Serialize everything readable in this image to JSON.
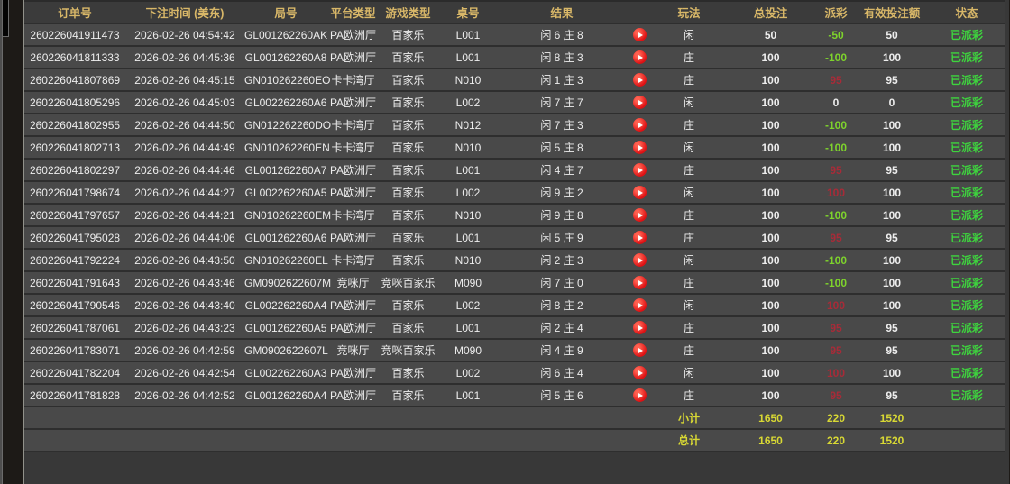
{
  "theme": {
    "header_gold": "#d8b768",
    "loss_green": "#7ed32c",
    "win_red": "#a82b38",
    "status_green": "#3ed43e",
    "total_yellow": "#d8d834",
    "replay_red": "#dd1013"
  },
  "table": {
    "headers": [
      "订单号",
      "下注时间 (美东)",
      "局号",
      "平台类型",
      "游戏类型",
      "桌号",
      "结果",
      "",
      "玩法",
      "总投注",
      "派彩",
      "有效投注额",
      "状态"
    ],
    "replay_icon": "play",
    "rows": [
      {
        "order_no": "260226041911473",
        "bet_time": "2026-02-26 04:54:42",
        "round_no": "GL001262260AK",
        "platform": "PA欧洲厅",
        "game_type": "百家乐",
        "table_no": "L001",
        "result": "闲 6 庄 8",
        "play": "闲",
        "total_bet": "50",
        "payout": "-50",
        "valid_bet": "50",
        "status": "已派彩"
      },
      {
        "order_no": "260226041811333",
        "bet_time": "2026-02-26 04:45:36",
        "round_no": "GL001262260A8",
        "platform": "PA欧洲厅",
        "game_type": "百家乐",
        "table_no": "L001",
        "result": "闲 8 庄 3",
        "play": "庄",
        "total_bet": "100",
        "payout": "-100",
        "valid_bet": "100",
        "status": "已派彩"
      },
      {
        "order_no": "260226041807869",
        "bet_time": "2026-02-26 04:45:15",
        "round_no": "GN010262260EO",
        "platform": "卡卡湾厅",
        "game_type": "百家乐",
        "table_no": "N010",
        "result": "闲 1 庄 3",
        "play": "庄",
        "total_bet": "100",
        "payout": "95",
        "valid_bet": "95",
        "status": "已派彩"
      },
      {
        "order_no": "260226041805296",
        "bet_time": "2026-02-26 04:45:03",
        "round_no": "GL002262260A6",
        "platform": "PA欧洲厅",
        "game_type": "百家乐",
        "table_no": "L002",
        "result": "闲 7 庄 7",
        "play": "闲",
        "total_bet": "100",
        "payout": "0",
        "valid_bet": "0",
        "status": "已派彩"
      },
      {
        "order_no": "260226041802955",
        "bet_time": "2026-02-26 04:44:50",
        "round_no": "GN012262260DO",
        "platform": "卡卡湾厅",
        "game_type": "百家乐",
        "table_no": "N012",
        "result": "闲 7 庄 3",
        "play": "庄",
        "total_bet": "100",
        "payout": "-100",
        "valid_bet": "100",
        "status": "已派彩"
      },
      {
        "order_no": "260226041802713",
        "bet_time": "2026-02-26 04:44:49",
        "round_no": "GN010262260EN",
        "platform": "卡卡湾厅",
        "game_type": "百家乐",
        "table_no": "N010",
        "result": "闲 5 庄 8",
        "play": "闲",
        "total_bet": "100",
        "payout": "-100",
        "valid_bet": "100",
        "status": "已派彩"
      },
      {
        "order_no": "260226041802297",
        "bet_time": "2026-02-26 04:44:46",
        "round_no": "GL001262260A7",
        "platform": "PA欧洲厅",
        "game_type": "百家乐",
        "table_no": "L001",
        "result": "闲 4 庄 7",
        "play": "庄",
        "total_bet": "100",
        "payout": "95",
        "valid_bet": "95",
        "status": "已派彩"
      },
      {
        "order_no": "260226041798674",
        "bet_time": "2026-02-26 04:44:27",
        "round_no": "GL002262260A5",
        "platform": "PA欧洲厅",
        "game_type": "百家乐",
        "table_no": "L002",
        "result": "闲 9 庄 2",
        "play": "闲",
        "total_bet": "100",
        "payout": "100",
        "valid_bet": "100",
        "status": "已派彩"
      },
      {
        "order_no": "260226041797657",
        "bet_time": "2026-02-26 04:44:21",
        "round_no": "GN010262260EM",
        "platform": "卡卡湾厅",
        "game_type": "百家乐",
        "table_no": "N010",
        "result": "闲 9 庄 8",
        "play": "庄",
        "total_bet": "100",
        "payout": "-100",
        "valid_bet": "100",
        "status": "已派彩"
      },
      {
        "order_no": "260226041795028",
        "bet_time": "2026-02-26 04:44:06",
        "round_no": "GL001262260A6",
        "platform": "PA欧洲厅",
        "game_type": "百家乐",
        "table_no": "L001",
        "result": "闲 5 庄 9",
        "play": "庄",
        "total_bet": "100",
        "payout": "95",
        "valid_bet": "95",
        "status": "已派彩"
      },
      {
        "order_no": "260226041792224",
        "bet_time": "2026-02-26 04:43:50",
        "round_no": "GN010262260EL",
        "platform": "卡卡湾厅",
        "game_type": "百家乐",
        "table_no": "N010",
        "result": "闲 2 庄 3",
        "play": "闲",
        "total_bet": "100",
        "payout": "-100",
        "valid_bet": "100",
        "status": "已派彩"
      },
      {
        "order_no": "260226041791643",
        "bet_time": "2026-02-26 04:43:46",
        "round_no": "GM0902622607M",
        "platform": "竞咪厅",
        "game_type": "竞咪百家乐",
        "table_no": "M090",
        "result": "闲 7 庄 0",
        "play": "庄",
        "total_bet": "100",
        "payout": "-100",
        "valid_bet": "100",
        "status": "已派彩"
      },
      {
        "order_no": "260226041790546",
        "bet_time": "2026-02-26 04:43:40",
        "round_no": "GL002262260A4",
        "platform": "PA欧洲厅",
        "game_type": "百家乐",
        "table_no": "L002",
        "result": "闲 8 庄 2",
        "play": "闲",
        "total_bet": "100",
        "payout": "100",
        "valid_bet": "100",
        "status": "已派彩"
      },
      {
        "order_no": "260226041787061",
        "bet_time": "2026-02-26 04:43:23",
        "round_no": "GL001262260A5",
        "platform": "PA欧洲厅",
        "game_type": "百家乐",
        "table_no": "L001",
        "result": "闲 2 庄 4",
        "play": "庄",
        "total_bet": "100",
        "payout": "95",
        "valid_bet": "95",
        "status": "已派彩"
      },
      {
        "order_no": "260226041783071",
        "bet_time": "2026-02-26 04:42:59",
        "round_no": "GM0902622607L",
        "platform": "竞咪厅",
        "game_type": "竞咪百家乐",
        "table_no": "M090",
        "result": "闲 4 庄 9",
        "play": "庄",
        "total_bet": "100",
        "payout": "95",
        "valid_bet": "95",
        "status": "已派彩"
      },
      {
        "order_no": "260226041782204",
        "bet_time": "2026-02-26 04:42:54",
        "round_no": "GL002262260A3",
        "platform": "PA欧洲厅",
        "game_type": "百家乐",
        "table_no": "L002",
        "result": "闲 6 庄 4",
        "play": "闲",
        "total_bet": "100",
        "payout": "100",
        "valid_bet": "100",
        "status": "已派彩"
      },
      {
        "order_no": "260226041781828",
        "bet_time": "2026-02-26 04:42:52",
        "round_no": "GL001262260A4",
        "platform": "PA欧洲厅",
        "game_type": "百家乐",
        "table_no": "L001",
        "result": "闲 5 庄 6",
        "play": "庄",
        "total_bet": "100",
        "payout": "95",
        "valid_bet": "95",
        "status": "已派彩"
      }
    ],
    "subtotal": {
      "label": "小计",
      "total_bet": "1650",
      "payout": "220",
      "valid_bet": "1520"
    },
    "grand_total": {
      "label": "总计",
      "total_bet": "1650",
      "payout": "220",
      "valid_bet": "1520"
    }
  }
}
